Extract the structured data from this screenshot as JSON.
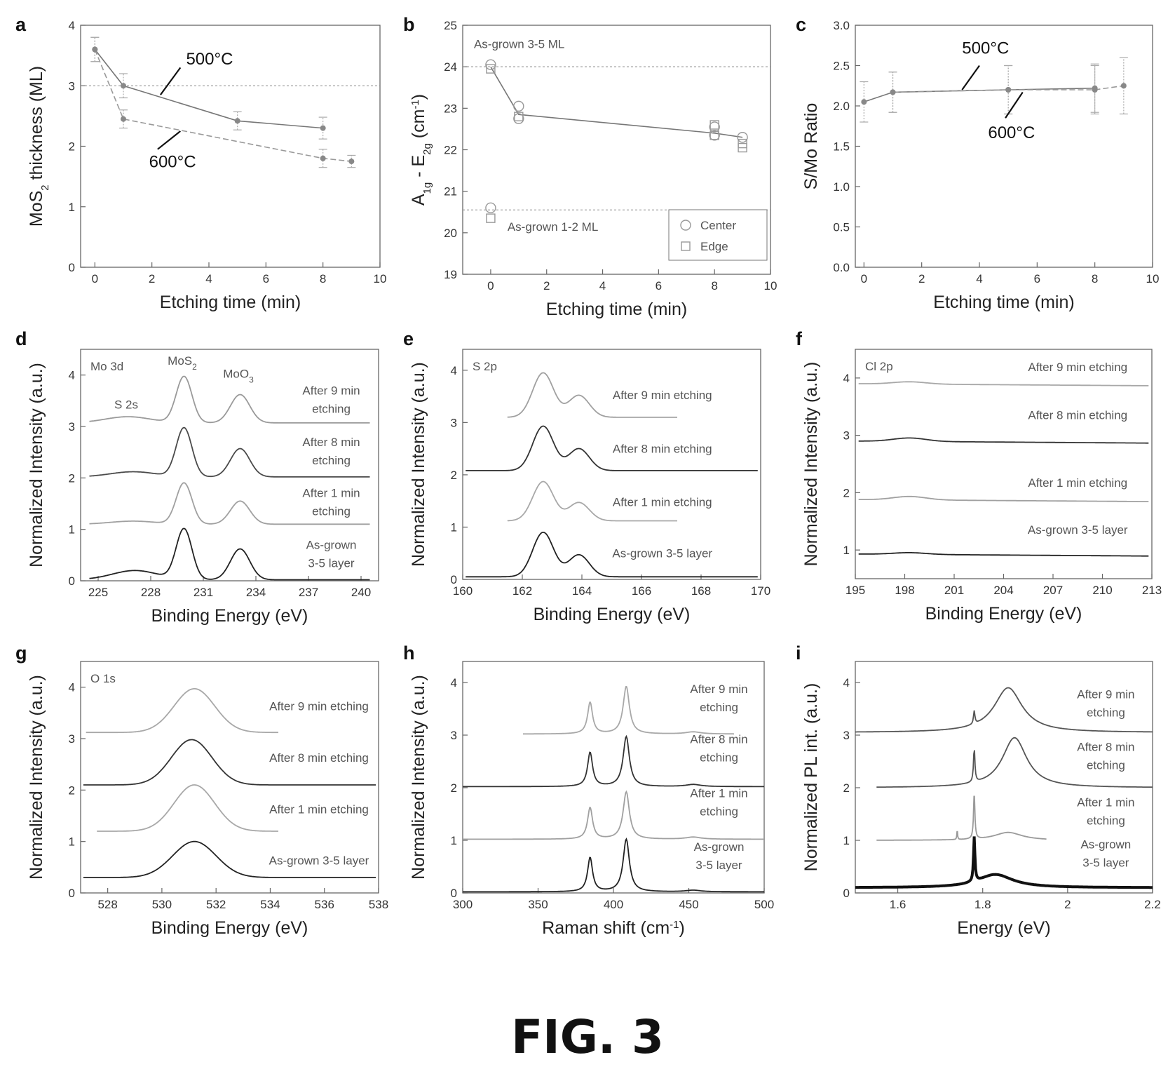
{
  "figure_caption": "FIG. 3",
  "chart_data": [
    {
      "id": "a",
      "panel_label": "a",
      "type": "line",
      "xlabel": "Etching time (min)",
      "ylabel_main": "MoS",
      "ylabel_sub": "2",
      "ylabel_tail": " thickness (ML)",
      "xlim": [
        -0.5,
        10
      ],
      "ylim": [
        0,
        4
      ],
      "xticks": [
        0,
        2,
        4,
        6,
        8,
        10
      ],
      "yticks": [
        0,
        1,
        2,
        3,
        4
      ],
      "hline": 3,
      "series": [
        {
          "name": "500°C",
          "x": [
            0,
            1,
            5,
            8
          ],
          "y": [
            3.6,
            3.0,
            2.42,
            2.3
          ],
          "err": [
            0.2,
            0.2,
            0.15,
            0.18
          ],
          "dash": false
        },
        {
          "name": "600°C",
          "x": [
            0,
            1,
            8,
            9
          ],
          "y": [
            3.6,
            2.45,
            1.8,
            1.75
          ],
          "err": [
            0.2,
            0.15,
            0.15,
            0.1
          ],
          "dash": true
        }
      ],
      "labels": [
        {
          "text": "500°C",
          "x": 3.2,
          "y": 3.35,
          "lx1": 2.3,
          "ly1": 2.85,
          "lx2": 3.0,
          "ly2": 3.3
        },
        {
          "text": "600°C",
          "x": 1.9,
          "y": 1.65,
          "lx1": 2.2,
          "ly1": 1.95,
          "lx2": 3.0,
          "ly2": 2.25
        }
      ]
    },
    {
      "id": "b",
      "panel_label": "b",
      "type": "scatter",
      "xlabel": "Etching time (min)",
      "ylabel_main": "A",
      "ylabel_sub": "1g",
      "ylabel_tail": " - E",
      "ylabel_sub2": "2g",
      "ylabel_end": " (cm",
      "ylabel_sup": "-1",
      "ylabel_close": ")",
      "xlim": [
        -1,
        10
      ],
      "ylim": [
        19,
        25
      ],
      "xticks": [
        0,
        2,
        4,
        6,
        8,
        10
      ],
      "yticks": [
        19,
        20,
        21,
        22,
        23,
        24,
        25
      ],
      "hlines": [
        24,
        20.55
      ],
      "line": {
        "x": [
          0,
          1,
          8,
          9
        ],
        "y": [
          24.0,
          22.85,
          22.4,
          22.3
        ]
      },
      "center": {
        "x": [
          0,
          0,
          1,
          1,
          8,
          8,
          9
        ],
        "y": [
          24.05,
          20.6,
          23.05,
          22.75,
          22.55,
          22.35,
          22.3
        ]
      },
      "edge": {
        "x": [
          0,
          0,
          1,
          8,
          8,
          9,
          9
        ],
        "y": [
          23.95,
          20.35,
          22.8,
          22.6,
          22.35,
          22.15,
          22.05
        ]
      },
      "legend": [
        "Center",
        "Edge"
      ],
      "annotations": [
        {
          "text": "As-grown 3-5 ML",
          "x": -0.6,
          "y": 24.45
        },
        {
          "text": "As-grown 1-2 ML",
          "x": 0.6,
          "y": 20.05
        }
      ]
    },
    {
      "id": "c",
      "panel_label": "c",
      "type": "line",
      "xlabel": "Etching time (min)",
      "ylabel": "S/Mo Ratio",
      "xlim": [
        -0.3,
        10
      ],
      "ylim": [
        0,
        3
      ],
      "xticks": [
        0,
        2,
        4,
        6,
        8,
        10
      ],
      "yticks": [
        0.0,
        0.5,
        1.0,
        1.5,
        2.0,
        2.5,
        3.0
      ],
      "series": [
        {
          "name": "500°C",
          "x": [
            0,
            1,
            5,
            8
          ],
          "y": [
            2.05,
            2.17,
            2.2,
            2.22
          ],
          "err": [
            0.25,
            0.25,
            0.3,
            0.3
          ],
          "dash": false
        },
        {
          "name": "600°C",
          "x": [
            1,
            5,
            8,
            9
          ],
          "y": [
            2.17,
            2.2,
            2.2,
            2.25
          ],
          "err": [
            0.25,
            0.3,
            0.3,
            0.35
          ],
          "dash": true
        }
      ],
      "labels": [
        {
          "text": "500°C",
          "x": 3.4,
          "y": 2.65,
          "lx1": 3.4,
          "ly1": 2.2,
          "lx2": 4.0,
          "ly2": 2.5
        },
        {
          "text": "600°C",
          "x": 4.3,
          "y": 1.6,
          "lx1": 4.9,
          "ly1": 1.85,
          "lx2": 5.5,
          "ly2": 2.17
        }
      ]
    },
    {
      "id": "d",
      "panel_label": "d",
      "type": "line",
      "xlabel": "Binding Energy (eV)",
      "ylabel": "Normalized Intensity (a.u.)",
      "xlim": [
        224,
        241
      ],
      "ylim": [
        0,
        4.5
      ],
      "xticks": [
        225,
        228,
        231,
        234,
        237,
        240
      ],
      "yticks": [
        0,
        1,
        2,
        3,
        4
      ],
      "title": "Mo 3d",
      "peak_labels": [
        {
          "text": "MoS",
          "sub": "2",
          "x": 229.8,
          "y": 4.2
        },
        {
          "text": "MoO",
          "sub": "3",
          "x": 233.0,
          "y": 3.95
        },
        {
          "text": "S 2s",
          "x": 226.6,
          "y": 3.35
        }
      ],
      "x_range": [
        224.5,
        240.5
      ],
      "series": [
        {
          "name": "After 9 min etching",
          "label_lines": [
            "After 9 min",
            "etching"
          ],
          "offset": 3.07,
          "peaks": [
            [
              226.7,
              1.3,
              0.12
            ],
            [
              229.9,
              0.45,
              0.9
            ],
            [
              233.1,
              0.55,
              0.55
            ]
          ],
          "color": "#9a9a9a",
          "label_x": 238.3,
          "label_y": 3.62
        },
        {
          "name": "After 8 min etching",
          "label_lines": [
            "After 8 min",
            "etching"
          ],
          "offset": 2.02,
          "peaks": [
            [
              227.0,
              1.3,
              0.1
            ],
            [
              229.9,
              0.45,
              0.95
            ],
            [
              233.1,
              0.55,
              0.55
            ]
          ],
          "color": "#4a4a4a",
          "label_x": 238.3,
          "label_y": 2.62
        },
        {
          "name": "After 1 min etching",
          "label_lines": [
            "After 1 min",
            "etching"
          ],
          "offset": 1.1,
          "peaks": [
            [
              227.0,
              1.3,
              0.06
            ],
            [
              229.9,
              0.45,
              0.8
            ],
            [
              233.1,
              0.55,
              0.45
            ]
          ],
          "color": "#a0a0a0",
          "label_x": 238.3,
          "label_y": 1.63
        },
        {
          "name": "As-grown 3-5 layer",
          "label_lines": [
            "As-grown",
            "3-5 layer"
          ],
          "offset": 0.02,
          "peaks": [
            [
              227.1,
              1.3,
              0.18
            ],
            [
              229.9,
              0.45,
              0.98
            ],
            [
              233.1,
              0.55,
              0.6
            ]
          ],
          "color": "#222222",
          "label_x": 238.3,
          "label_y": 0.62
        }
      ]
    },
    {
      "id": "e",
      "panel_label": "e",
      "type": "line",
      "xlabel": "Binding Energy (eV)",
      "ylabel": "Normalized Intensity (a.u.)",
      "xlim": [
        160,
        170
      ],
      "ylim": [
        0,
        4.4
      ],
      "xticks": [
        160,
        162,
        164,
        166,
        168,
        170
      ],
      "yticks": [
        0,
        1,
        2,
        3,
        4
      ],
      "title": "S 2p",
      "x_range": [
        160.1,
        169.9
      ],
      "series": [
        {
          "name": "After 9 min etching",
          "label_lines": [
            "After 9 min etching"
          ],
          "offset": 3.1,
          "x_start": 161.5,
          "x_end": 167.2,
          "peaks": [
            [
              162.7,
              0.35,
              0.85
            ],
            [
              163.9,
              0.35,
              0.42
            ]
          ],
          "color": "#a0a0a0",
          "label_x": 166.7,
          "label_y": 3.45
        },
        {
          "name": "After 8 min etching",
          "label_lines": [
            "After 8 min etching"
          ],
          "offset": 2.08,
          "peaks": [
            [
              162.7,
              0.35,
              0.85
            ],
            [
              163.9,
              0.35,
              0.42
            ]
          ],
          "color": "#333333",
          "label_x": 166.7,
          "label_y": 2.42
        },
        {
          "name": "After 1 min etching",
          "label_lines": [
            "After 1 min etching"
          ],
          "offset": 1.12,
          "x_start": 161.5,
          "x_end": 167.2,
          "peaks": [
            [
              162.7,
              0.35,
              0.75
            ],
            [
              163.9,
              0.35,
              0.35
            ]
          ],
          "color": "#a8a8a8",
          "label_x": 166.7,
          "label_y": 1.4
        },
        {
          "name": "As-grown 3-5 layer",
          "label_lines": [
            "As-grown 3-5 layer"
          ],
          "offset": 0.05,
          "peaks": [
            [
              162.7,
              0.35,
              0.85
            ],
            [
              163.9,
              0.35,
              0.42
            ]
          ],
          "color": "#222222",
          "label_x": 166.7,
          "label_y": 0.42
        }
      ]
    },
    {
      "id": "f",
      "panel_label": "f",
      "type": "line",
      "xlabel": "Binding Energy (eV)",
      "ylabel": "Normalized Intensity (a.u.)",
      "xlim": [
        195,
        213
      ],
      "ylim": [
        0.5,
        4.5
      ],
      "xticks": [
        195,
        198,
        201,
        204,
        207,
        210,
        213
      ],
      "yticks": [
        1,
        2,
        3,
        4
      ],
      "title": "Cl 2p",
      "x_range": [
        195.2,
        212.8
      ],
      "series": [
        {
          "name": "After 9 min etching",
          "label_lines": [
            "After 9 min etching"
          ],
          "offset": 3.9,
          "bump": 0.04,
          "color": "#a8a8a8",
          "label_x": 208.5,
          "label_y": 4.12
        },
        {
          "name": "After 8 min etching",
          "label_lines": [
            "After 8 min etching"
          ],
          "offset": 2.9,
          "bump": 0.06,
          "color": "#333333",
          "label_x": 208.5,
          "label_y": 3.28
        },
        {
          "name": "After 1 min etching",
          "label_lines": [
            "After 1 min etching"
          ],
          "offset": 1.88,
          "bump": 0.06,
          "color": "#a0a0a0",
          "label_x": 208.5,
          "label_y": 2.1
        },
        {
          "name": "As-grown 3-5 layer",
          "label_lines": [
            "As-grown 3-5 layer"
          ],
          "offset": 0.93,
          "bump": 0.03,
          "color": "#222222",
          "label_x": 208.5,
          "label_y": 1.28
        }
      ]
    },
    {
      "id": "g",
      "panel_label": "g",
      "type": "line",
      "xlabel": "Binding Energy (eV)",
      "ylabel": "Normalized Intensity (a.u.)",
      "xlim": [
        527,
        538
      ],
      "ylim": [
        0,
        4.5
      ],
      "xticks": [
        528,
        530,
        532,
        534,
        536,
        538
      ],
      "yticks": [
        0,
        1,
        2,
        3,
        4
      ],
      "title": "O 1s",
      "x_range": [
        527.1,
        537.9
      ],
      "series": [
        {
          "name": "After 9 min etching",
          "label_lines": [
            "After 9 min etching"
          ],
          "offset": 3.12,
          "x_start": 527.2,
          "x_end": 534.3,
          "peaks": [
            [
              531.2,
              0.75,
              0.85
            ]
          ],
          "color": "#a8a8a8",
          "label_x": 535.8,
          "label_y": 3.55
        },
        {
          "name": "After 8 min etching",
          "label_lines": [
            "After 8 min etching"
          ],
          "offset": 2.1,
          "peaks": [
            [
              531.1,
              0.75,
              0.88
            ]
          ],
          "color": "#333333",
          "label_x": 535.8,
          "label_y": 2.55
        },
        {
          "name": "After 1 min etching",
          "label_lines": [
            "After 1 min etching"
          ],
          "offset": 1.2,
          "x_start": 527.6,
          "x_end": 534.3,
          "peaks": [
            [
              531.2,
              0.75,
              0.9
            ]
          ],
          "color": "#a8a8a8",
          "label_x": 535.8,
          "label_y": 1.55
        },
        {
          "name": "As-grown 3-5 layer",
          "label_lines": [
            "As-grown 3-5 layer"
          ],
          "offset": 0.3,
          "peaks": [
            [
              531.2,
              0.8,
              0.7
            ]
          ],
          "color": "#222222",
          "label_x": 535.8,
          "label_y": 0.55
        }
      ]
    },
    {
      "id": "h",
      "panel_label": "h",
      "type": "line",
      "xlabel_main": "Raman shift (cm",
      "xlabel_sup": "-1",
      "xlabel_close": ")",
      "ylabel": "Normalized Intensity (a.u.)",
      "xlim": [
        300,
        500
      ],
      "ylim": [
        0,
        4.4
      ],
      "xticks": [
        300,
        350,
        400,
        450,
        500
      ],
      "yticks": [
        0,
        1,
        2,
        3,
        4
      ],
      "x_range": [
        300,
        500
      ],
      "series": [
        {
          "name": "After 9 min etching",
          "label_lines": [
            "After 9 min",
            "etching"
          ],
          "offset": 3.02,
          "x_start": 340,
          "x_end": 480,
          "peaks": [
            [
              384.5,
              2.0,
              0.6
            ],
            [
              408.5,
              2.5,
              0.9
            ],
            [
              453,
              6,
              0.04
            ]
          ],
          "color": "#a8a8a8",
          "label_x": 470,
          "label_y": 3.8
        },
        {
          "name": "After 8 min etching",
          "label_lines": [
            "After 8 min",
            "etching"
          ],
          "offset": 2.02,
          "peaks": [
            [
              384.5,
              2.0,
              0.65
            ],
            [
              408.5,
              2.5,
              0.95
            ],
            [
              453,
              6,
              0.04
            ]
          ],
          "color": "#333333",
          "label_x": 470,
          "label_y": 2.85
        },
        {
          "name": "After 1 min etching",
          "label_lines": [
            "After 1 min",
            "etching"
          ],
          "offset": 1.02,
          "peaks": [
            [
              384.5,
              2.0,
              0.6
            ],
            [
              408.5,
              2.5,
              0.9
            ],
            [
              453,
              6,
              0.04
            ]
          ],
          "color": "#a0a0a0",
          "label_x": 470,
          "label_y": 1.82
        },
        {
          "name": "As-grown 3-5 layer",
          "label_lines": [
            "As-grown",
            "3-5 layer"
          ],
          "offset": 0.02,
          "peaks": [
            [
              384.5,
              2.0,
              0.65
            ],
            [
              408.5,
              2.5,
              1.0
            ],
            [
              453,
              6,
              0.03
            ]
          ],
          "color": "#222222",
          "label_x": 470,
          "label_y": 0.8
        }
      ]
    },
    {
      "id": "i",
      "panel_label": "i",
      "type": "line",
      "xlabel": "Energy (eV)",
      "ylabel": "Normalized PL int. (a.u.)",
      "xlim": [
        1.5,
        2.2
      ],
      "ylim": [
        0,
        4.4
      ],
      "xticks": [
        1.6,
        1.8,
        2.0,
        2.2
      ],
      "yticks": [
        0,
        1,
        2,
        3,
        4
      ],
      "x_range": [
        1.5,
        2.2
      ],
      "series": [
        {
          "name": "After 9 min etching",
          "label_lines": [
            "After 9 min",
            "etching"
          ],
          "offset": 3.05,
          "peaks": [
            [
              1.86,
              0.04,
              0.85
            ],
            [
              1.78,
              0.002,
              0.25
            ]
          ],
          "color": "#555555",
          "label_x": 2.09,
          "label_y": 3.7
        },
        {
          "name": "After 8 min etching",
          "label_lines": [
            "After 8 min",
            "etching"
          ],
          "offset": 2.0,
          "x_start": 1.55,
          "peaks": [
            [
              1.875,
              0.035,
              0.95
            ],
            [
              1.78,
              0.002,
              0.65
            ]
          ],
          "color": "#555555",
          "label_x": 2.09,
          "label_y": 2.7
        },
        {
          "name": "After 1 min etching",
          "label_lines": [
            "After 1 min",
            "etching"
          ],
          "offset": 1.0,
          "x_start": 1.55,
          "x_end": 1.95,
          "peaks": [
            [
              1.86,
              0.04,
              0.15
            ],
            [
              1.78,
              0.002,
              0.85
            ],
            [
              1.74,
              0.001,
              0.18
            ]
          ],
          "color": "#9a9a9a",
          "label_x": 2.09,
          "label_y": 1.65
        },
        {
          "name": "As-grown 3-5 layer",
          "label_lines": [
            "As-grown",
            "3-5 layer"
          ],
          "offset": 0.1,
          "peaks": [
            [
              1.83,
              0.05,
              0.25
            ],
            [
              1.78,
              0.002,
              0.85
            ]
          ],
          "color": "#111111",
          "thick": true,
          "label_x": 2.09,
          "label_y": 0.85
        }
      ]
    }
  ]
}
